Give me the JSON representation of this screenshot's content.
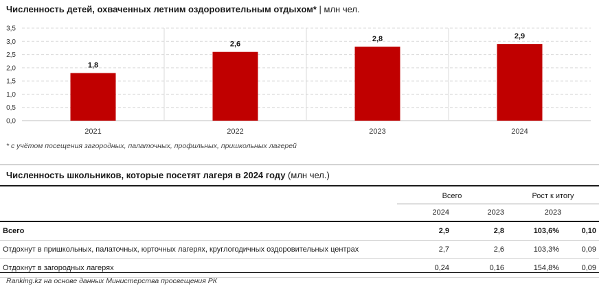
{
  "chart_title_bold": "Численность детей, охваченных летним оздоровительным отдыхом*",
  "chart_title_unit": "| млн чел.",
  "footnote": "* с учётом посещения загородных, палаточных, профильных, пришкольных лагерей",
  "table_title_bold": "Численность школьников, которые посетят лагеря в 2024 году",
  "table_title_unit": "(млн чел.)",
  "table": {
    "group_headers": {
      "total": "Всего",
      "growth": "Рост к итогу"
    },
    "sub_headers": {
      "col1": "2024",
      "col2": "2023",
      "col3": "2023"
    },
    "rows": [
      {
        "label": "Всего",
        "v2024": "2,9",
        "v2023": "2,8",
        "growth": "103,6%",
        "diff": "0,10"
      },
      {
        "label": "Отдохнут в пришкольных, палаточных, юрточных лагерях, круглогодичных оздоровительных центрах",
        "v2024": "2,7",
        "v2023": "2,6",
        "growth": "103,3%",
        "diff": "0,09"
      },
      {
        "label": "Отдохнут в загородных лагерях",
        "v2024": "0,24",
        "v2023": "0,16",
        "growth": "154,8%",
        "diff": "0,09"
      }
    ]
  },
  "source": "Ranking.kz на основе данных Министерства просвещения РК",
  "colors": {
    "bar": "#c00000",
    "grid": "#d9d9d9"
  },
  "chart_data": {
    "type": "bar",
    "categories": [
      "2021",
      "2022",
      "2023",
      "2024"
    ],
    "values": [
      1.8,
      2.6,
      2.8,
      2.9
    ],
    "data_labels": [
      "1,8",
      "2,6",
      "2,8",
      "2,9"
    ],
    "y_ticks": [
      "0,0",
      "0,5",
      "1,0",
      "1,5",
      "2,0",
      "2,5",
      "3,0",
      "3,5"
    ],
    "ylim": [
      0,
      3.5
    ],
    "grid": true
  }
}
